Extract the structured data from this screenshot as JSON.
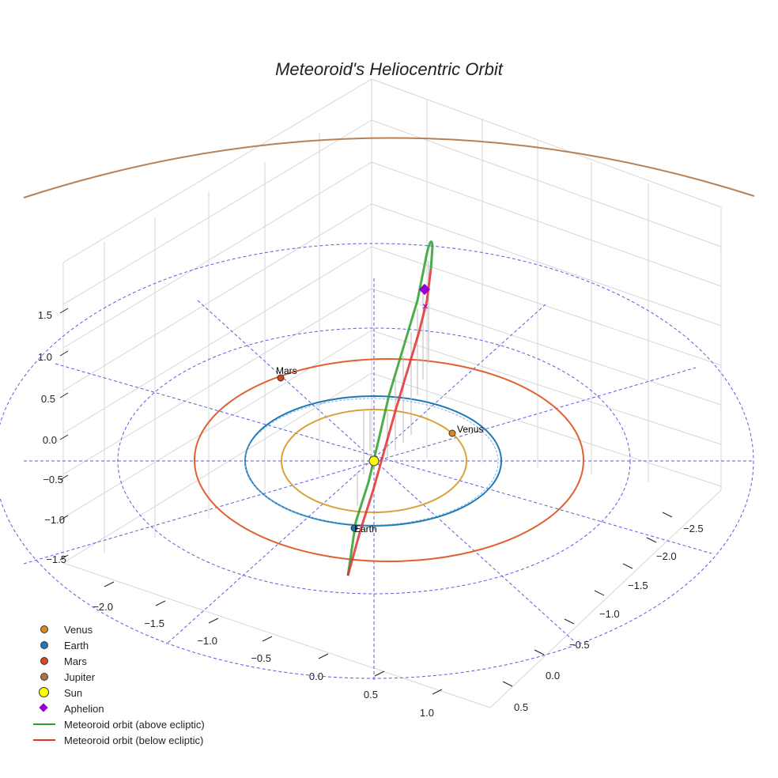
{
  "chart_data": {
    "type": "scatter3d",
    "title": "Meteoroid's Heliocentric Orbit",
    "z_ticks": [
      "1.5",
      "1.0",
      "0.5",
      "0.0",
      "−0.5",
      "−1.0",
      "−1.5"
    ],
    "x_ticks": [
      "−2.0",
      "−1.5",
      "−1.0",
      "−0.5",
      "0.0",
      "0.5",
      "1.0"
    ],
    "y_ticks": [
      "−2.5",
      "−2.0",
      "−1.5",
      "−1.0",
      "−0.5",
      "0.0",
      "0.5"
    ],
    "orbits": [
      {
        "name": "Venus",
        "radius_au": 0.72,
        "color": "#daa03a"
      },
      {
        "name": "Earth",
        "radius_au": 1.0,
        "color": "#1f77b4"
      },
      {
        "name": "Mars",
        "radius_au": 1.52,
        "color": "#e06030"
      },
      {
        "name": "Jupiter",
        "radius_au": 5.2,
        "color": "#b5825a"
      }
    ],
    "planets": [
      {
        "name": "Venus",
        "label": "Venus",
        "color": "#d98a1e"
      },
      {
        "name": "Earth",
        "label": "Earth",
        "color": "#1f77b4"
      },
      {
        "name": "Mars",
        "label": "Mars",
        "color": "#d8461a"
      }
    ],
    "meteoroid": {
      "above_color": "#2ca02c",
      "below_color": "#e03030",
      "aphelion_color": "#9400d3"
    },
    "legend": [
      {
        "label": "Venus",
        "marker": "dot",
        "color": "#d98a1e"
      },
      {
        "label": "Earth",
        "marker": "dot",
        "color": "#1f77b4"
      },
      {
        "label": "Mars",
        "marker": "dot",
        "color": "#d8461a"
      },
      {
        "label": "Jupiter",
        "marker": "dot",
        "color": "#b5703a"
      },
      {
        "label": "Sun",
        "marker": "sun",
        "color": "#ffff00"
      },
      {
        "label": "Aphelion",
        "marker": "diamond",
        "color": "#9400d3"
      },
      {
        "label": "Meteoroid orbit (above ecliptic)",
        "marker": "line",
        "color": "#2ca02c"
      },
      {
        "label": "Meteoroid orbit (below ecliptic)",
        "marker": "line",
        "color": "#e03030"
      }
    ]
  }
}
